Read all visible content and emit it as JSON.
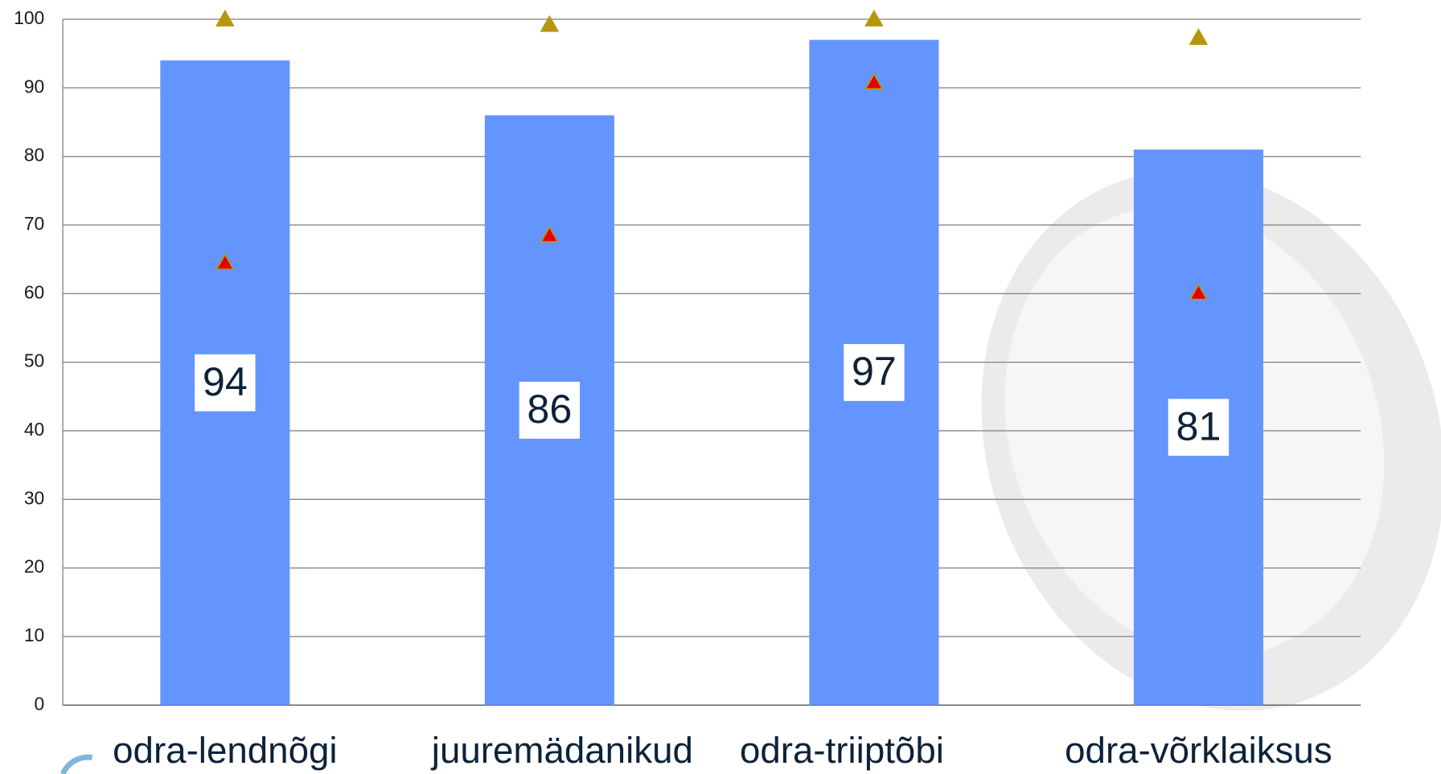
{
  "chart_data": {
    "type": "bar",
    "categories": [
      "odra-lendnõgi",
      "juuremädanikud",
      "odra-triiptõbi",
      "odra-võrklaiksus"
    ],
    "series": [
      {
        "type": "bar",
        "color": "#6495ff",
        "values": [
          94,
          86,
          97,
          81
        ]
      },
      {
        "type": "scatter",
        "marker": "triangle",
        "color": "#e00000",
        "values": [
          64.5,
          68.5,
          90.8,
          60.1
        ]
      },
      {
        "type": "scatter",
        "marker": "triangle",
        "color": "#b8960c",
        "values": [
          100,
          99.2,
          100,
          97.3
        ]
      }
    ],
    "ylim": [
      0,
      100
    ],
    "yticks": [
      0,
      10,
      20,
      30,
      40,
      50,
      60,
      70,
      80,
      90,
      100
    ],
    "grid": true
  }
}
